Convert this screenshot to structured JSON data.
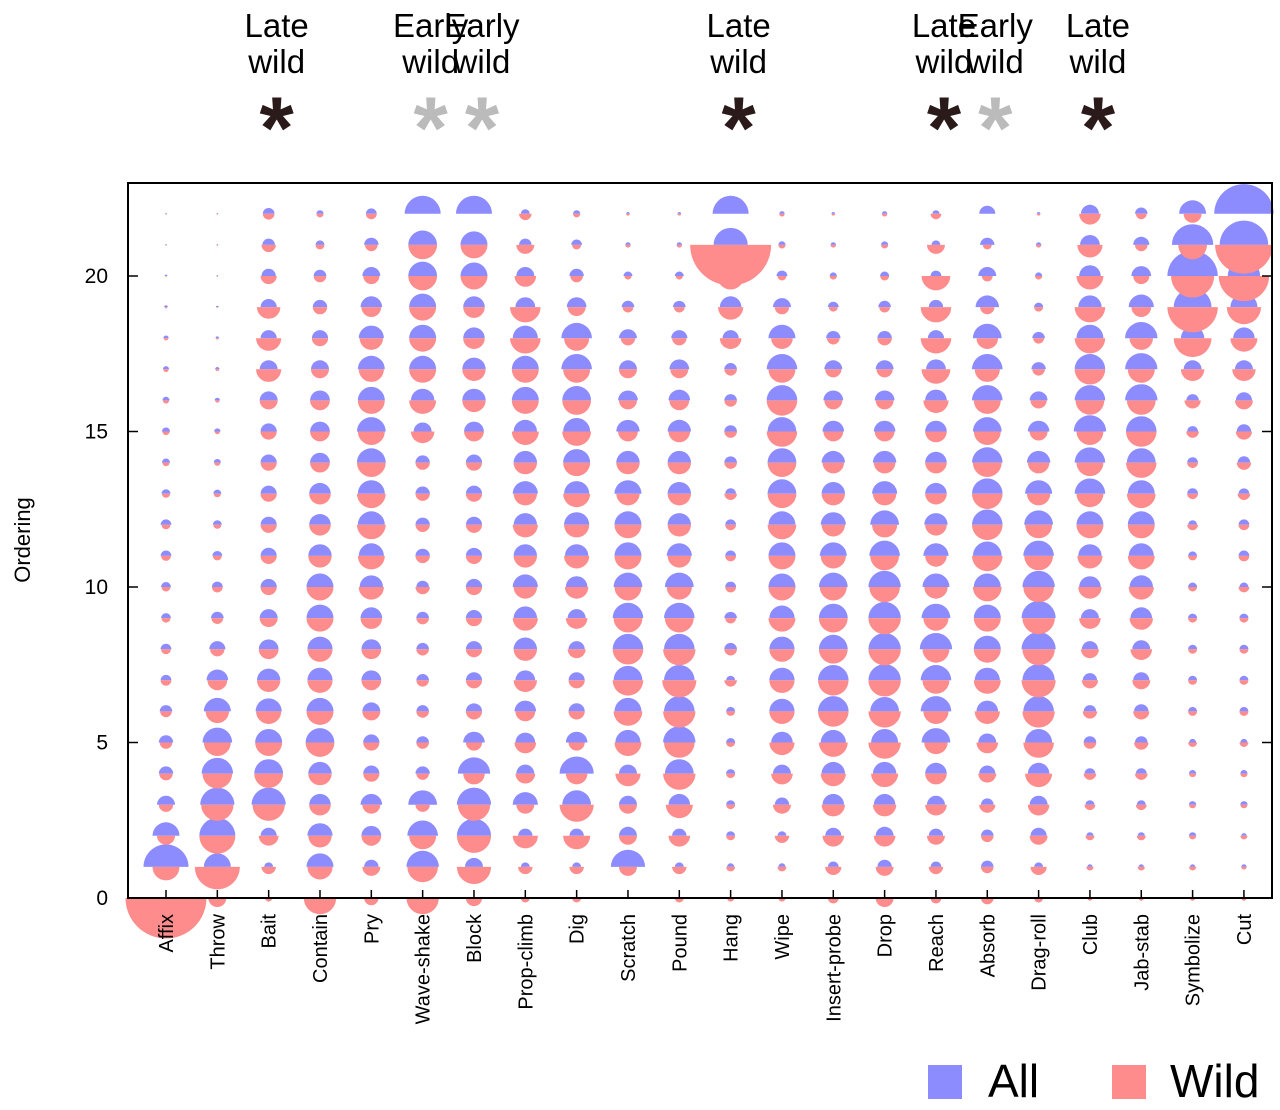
{
  "chart_data": {
    "type": "scatter",
    "ylabel": "Ordering",
    "xlabel": "",
    "ylim": [
      0,
      22
    ],
    "yticks": [
      0,
      5,
      10,
      15,
      20
    ],
    "categories": [
      "Affix",
      "Throw",
      "Bait",
      "Contain",
      "Pry",
      "Wave-shake",
      "Block",
      "Prop-climb",
      "Dig",
      "Scratch",
      "Pound",
      "Hang",
      "Wipe",
      "Insert-probe",
      "Drop",
      "Reach",
      "Absorb",
      "Drag-roll",
      "Club",
      "Jab-stab",
      "Symbolize",
      "Cut"
    ],
    "series": [
      {
        "name": "All",
        "color": "#8c8cff"
      },
      {
        "name": "Wild",
        "color": "#ff8c8c"
      }
    ],
    "legend_position": "bottom-right",
    "grid": false,
    "annotations": [
      {
        "category": "Bait",
        "line1": "Late",
        "line2": "wild",
        "symbol": "*",
        "color": "#2b1a1a"
      },
      {
        "category": "Wave-shake",
        "line1": "Early",
        "line2": "wild",
        "symbol": "*",
        "color": "#bbbbbb"
      },
      {
        "category": "Block",
        "line1": "Early",
        "line2": "wild",
        "symbol": "*",
        "color": "#bbbbbb"
      },
      {
        "category": "Hang",
        "line1": "Late",
        "line2": "wild",
        "symbol": "*",
        "color": "#2b1a1a"
      },
      {
        "category": "Reach",
        "line1": "Late",
        "line2": "wild",
        "symbol": "*",
        "color": "#2b1a1a"
      },
      {
        "category": "Absorb",
        "line1": "Early",
        "line2": "wild",
        "symbol": "*",
        "color": "#bbbbbb"
      },
      {
        "category": "Club",
        "line1": "Late",
        "line2": "wild",
        "symbol": "*",
        "color": "#2b1a1a"
      }
    ],
    "bubbles": {
      "Affix": {
        "all": [
          0,
          5.0,
          3.0,
          2.0,
          1.6,
          1.6,
          1.4,
          1.2,
          1.2,
          1.1,
          1.1,
          1.2,
          1.2,
          1.0,
          0.9,
          0.9,
          0.8,
          0.7,
          0.6,
          0.4,
          0.3,
          0.2,
          0.2
        ],
        "wild": [
          9.0,
          3.0,
          2.0,
          1.6,
          1.5,
          1.4,
          1.3,
          1.2,
          1.1,
          1.0,
          1.0,
          1.1,
          1.0,
          0.9,
          0.8,
          0.8,
          0.7,
          0.6,
          0.5,
          0.3,
          0.2,
          0.2,
          0.2
        ]
      },
      "Throw": {
        "all": [
          0,
          3.0,
          4.0,
          3.8,
          3.5,
          3.3,
          3.0,
          2.4,
          1.8,
          1.4,
          1.2,
          1.1,
          1.0,
          0.9,
          0.8,
          0.7,
          0.6,
          0.5,
          0.4,
          0.3,
          0.2,
          0.2,
          0.2
        ],
        "wild": [
          2.0,
          5.0,
          4.0,
          3.6,
          3.3,
          3.0,
          2.6,
          2.2,
          1.6,
          1.3,
          1.2,
          1.0,
          0.9,
          0.8,
          0.7,
          0.6,
          0.5,
          0.4,
          0.3,
          0.2,
          0.2,
          0.2,
          0.2
        ]
      },
      "Bait": {
        "all": [
          0,
          1.0,
          1.8,
          3.8,
          3.2,
          3.0,
          2.9,
          2.6,
          2.2,
          2.0,
          1.8,
          1.8,
          1.8,
          1.8,
          1.8,
          1.8,
          2.0,
          2.0,
          1.8,
          1.8,
          1.6,
          1.4,
          1.3
        ],
        "wild": [
          0.8,
          1.6,
          2.2,
          3.6,
          3.2,
          3.0,
          2.8,
          2.6,
          2.2,
          2.0,
          1.8,
          1.8,
          1.8,
          1.8,
          1.8,
          1.8,
          2.0,
          2.8,
          2.8,
          2.6,
          1.8,
          1.6,
          1.3
        ]
      },
      "Contain": {
        "all": [
          0,
          3.0,
          2.8,
          2.4,
          2.6,
          3.2,
          3.0,
          2.8,
          2.8,
          3.0,
          3.0,
          2.6,
          2.4,
          2.4,
          2.2,
          2.2,
          2.2,
          2.0,
          1.8,
          1.6,
          1.4,
          1.0,
          0.8
        ],
        "wild": [
          3.6,
          2.8,
          2.6,
          2.4,
          2.6,
          3.2,
          3.0,
          2.8,
          2.8,
          3.0,
          3.0,
          2.6,
          2.4,
          2.4,
          2.2,
          2.2,
          2.2,
          2.0,
          1.8,
          1.6,
          1.4,
          1.0,
          0.8
        ]
      },
      "Pry": {
        "all": [
          0,
          1.6,
          2.2,
          2.4,
          1.8,
          1.8,
          2.0,
          2.2,
          2.2,
          2.4,
          2.6,
          2.8,
          3.0,
          3.0,
          3.2,
          3.2,
          3.0,
          3.0,
          2.8,
          2.4,
          2.0,
          1.6,
          1.2
        ],
        "wild": [
          1.6,
          2.0,
          2.2,
          2.0,
          1.8,
          1.8,
          2.0,
          2.2,
          2.2,
          2.4,
          2.8,
          3.0,
          3.2,
          3.2,
          3.2,
          3.0,
          3.0,
          2.8,
          2.6,
          2.2,
          1.8,
          1.4,
          1.2
        ]
      },
      "Wave-shake": {
        "all": [
          0,
          3.6,
          3.4,
          3.2,
          1.6,
          1.4,
          1.4,
          1.4,
          1.4,
          1.4,
          1.4,
          1.6,
          1.6,
          1.6,
          1.6,
          2.0,
          2.6,
          3.0,
          3.0,
          3.0,
          3.2,
          3.2,
          4.0
        ],
        "wild": [
          3.6,
          3.4,
          3.0,
          1.6,
          1.4,
          1.4,
          1.4,
          1.4,
          1.4,
          1.4,
          1.6,
          1.6,
          1.6,
          1.6,
          1.6,
          2.6,
          3.0,
          3.0,
          3.0,
          3.0,
          3.2,
          3.2,
          0
        ]
      },
      "Block": {
        "all": [
          0,
          2.0,
          3.8,
          3.8,
          3.6,
          2.4,
          1.8,
          1.8,
          1.8,
          1.8,
          1.8,
          1.8,
          1.8,
          1.8,
          1.8,
          2.2,
          2.6,
          2.6,
          2.4,
          2.4,
          3.0,
          3.0,
          4.0
        ],
        "wild": [
          1.8,
          3.8,
          3.8,
          3.6,
          2.4,
          1.8,
          1.8,
          1.8,
          1.8,
          1.8,
          1.8,
          1.8,
          1.8,
          1.8,
          1.8,
          2.2,
          2.6,
          2.6,
          2.4,
          2.4,
          3.0,
          3.0,
          0
        ]
      },
      "Prop-climb": {
        "all": [
          0,
          1.0,
          1.6,
          2.8,
          2.0,
          2.2,
          2.4,
          2.2,
          2.6,
          2.6,
          2.8,
          2.6,
          2.6,
          2.8,
          2.6,
          2.6,
          3.0,
          3.0,
          2.8,
          2.2,
          2.0,
          1.4,
          1.0
        ],
        "wild": [
          1.0,
          1.6,
          2.8,
          2.0,
          2.2,
          2.4,
          2.2,
          2.6,
          2.6,
          2.8,
          2.6,
          2.6,
          2.8,
          2.6,
          2.6,
          3.0,
          3.0,
          3.0,
          3.4,
          3.4,
          2.4,
          2.0,
          1.4
        ]
      },
      "Dig": {
        "all": [
          0,
          1.0,
          1.6,
          3.2,
          3.8,
          2.4,
          1.8,
          1.8,
          1.8,
          2.0,
          2.4,
          2.6,
          2.8,
          2.8,
          3.0,
          3.0,
          3.2,
          3.4,
          3.4,
          2.2,
          1.6,
          1.2,
          0.8
        ],
        "wild": [
          1.0,
          1.6,
          3.0,
          3.8,
          2.4,
          1.8,
          1.8,
          1.8,
          2.0,
          2.4,
          2.6,
          2.8,
          2.8,
          3.0,
          3.0,
          3.2,
          3.2,
          3.0,
          2.8,
          2.0,
          1.4,
          1.0,
          0.8
        ]
      },
      "Scratch": {
        "all": [
          0,
          3.8,
          2.0,
          2.0,
          2.0,
          2.8,
          3.0,
          3.2,
          3.4,
          3.4,
          3.2,
          3.0,
          3.0,
          3.0,
          2.6,
          2.6,
          2.2,
          2.0,
          2.0,
          1.4,
          1.0,
          0.6,
          0.4
        ],
        "wild": [
          0,
          2.0,
          2.0,
          2.0,
          2.8,
          3.0,
          3.2,
          3.4,
          3.4,
          3.2,
          3.0,
          3.0,
          3.0,
          2.6,
          2.6,
          2.2,
          2.0,
          2.0,
          1.6,
          1.2,
          0.8,
          0.6,
          0.4
        ]
      },
      "Pound": {
        "all": [
          0,
          1.0,
          1.6,
          2.4,
          3.2,
          3.6,
          3.4,
          3.4,
          3.4,
          3.4,
          3.2,
          2.8,
          2.6,
          2.6,
          2.6,
          2.6,
          2.4,
          2.2,
          1.8,
          1.4,
          1.0,
          0.6,
          0.4
        ],
        "wild": [
          1.0,
          1.6,
          2.4,
          3.0,
          3.6,
          3.4,
          3.6,
          3.8,
          3.6,
          3.2,
          2.8,
          2.6,
          2.6,
          2.6,
          2.6,
          2.4,
          2.2,
          2.0,
          1.6,
          1.2,
          0.8,
          0.6,
          0.4
        ]
      },
      "Hang": {
        "all": [
          0,
          0.8,
          1.0,
          1.0,
          1.0,
          1.0,
          1.0,
          1.0,
          1.4,
          1.4,
          1.2,
          1.2,
          1.2,
          1.2,
          1.4,
          1.4,
          1.4,
          1.4,
          1.8,
          2.4,
          2.8,
          3.8,
          4.0
        ],
        "wild": [
          0.8,
          1.0,
          1.0,
          1.0,
          1.0,
          1.0,
          1.0,
          1.4,
          1.4,
          1.2,
          1.2,
          1.2,
          1.2,
          1.4,
          1.4,
          1.4,
          1.4,
          1.4,
          2.4,
          2.8,
          3.0,
          9.0,
          0
        ]
      },
      "Wipe": {
        "all": [
          0,
          0.8,
          1.0,
          1.6,
          2.0,
          2.4,
          2.8,
          2.8,
          2.8,
          2.8,
          3.0,
          3.0,
          3.0,
          3.2,
          3.2,
          3.2,
          3.4,
          3.4,
          3.0,
          2.0,
          1.2,
          0.8,
          0.6
        ],
        "wild": [
          0.8,
          1.0,
          1.6,
          2.0,
          2.4,
          2.8,
          2.8,
          2.8,
          2.8,
          3.0,
          3.0,
          3.0,
          3.2,
          3.2,
          3.2,
          3.4,
          3.4,
          3.0,
          2.4,
          1.6,
          1.0,
          0.8,
          0.6
        ]
      },
      "Insert-probe": {
        "all": [
          0,
          1.2,
          1.8,
          2.4,
          2.6,
          2.8,
          3.4,
          3.4,
          3.2,
          3.2,
          3.2,
          3.0,
          2.8,
          2.6,
          2.6,
          2.4,
          2.2,
          2.0,
          1.6,
          1.2,
          0.8,
          0.6,
          0.4
        ],
        "wild": [
          1.2,
          1.8,
          2.4,
          2.6,
          2.8,
          3.2,
          3.4,
          3.4,
          3.2,
          3.2,
          3.0,
          2.8,
          2.6,
          2.6,
          2.4,
          2.2,
          2.0,
          1.8,
          1.4,
          1.0,
          0.8,
          0.6,
          0.4
        ]
      },
      "Drop": {
        "all": [
          0,
          1.6,
          2.0,
          2.4,
          2.6,
          3.0,
          3.2,
          3.6,
          3.6,
          3.6,
          3.6,
          3.4,
          3.2,
          2.8,
          2.6,
          2.4,
          2.2,
          2.0,
          1.6,
          1.4,
          1.0,
          0.8,
          0.6
        ],
        "wild": [
          2.0,
          2.0,
          2.4,
          2.6,
          3.0,
          3.6,
          3.6,
          3.6,
          3.6,
          3.6,
          3.4,
          3.2,
          2.8,
          2.6,
          2.4,
          2.2,
          2.0,
          1.8,
          1.6,
          1.2,
          1.0,
          0.8,
          0.6
        ]
      },
      "Reach": {
        "all": [
          0,
          1.2,
          1.6,
          2.0,
          2.4,
          3.2,
          3.4,
          3.4,
          3.6,
          3.2,
          3.0,
          2.8,
          2.6,
          2.4,
          2.4,
          2.4,
          2.4,
          2.2,
          1.8,
          1.6,
          1.2,
          1.0,
          0.8
        ],
        "wild": [
          1.2,
          1.6,
          2.0,
          2.4,
          2.4,
          2.6,
          2.8,
          3.0,
          3.0,
          2.8,
          2.6,
          2.4,
          2.4,
          2.4,
          2.4,
          2.4,
          2.8,
          3.2,
          3.4,
          3.4,
          3.2,
          2.0,
          1.2
        ]
      },
      "Absorb": {
        "all": [
          0,
          1.4,
          1.4,
          1.4,
          1.8,
          2.0,
          2.4,
          2.8,
          3.0,
          3.0,
          3.0,
          3.2,
          3.4,
          3.4,
          3.4,
          3.2,
          3.4,
          3.4,
          3.2,
          2.6,
          2.0,
          1.6,
          1.8
        ],
        "wild": [
          1.4,
          1.4,
          1.4,
          1.8,
          2.0,
          2.4,
          2.8,
          3.0,
          3.0,
          3.0,
          3.2,
          3.4,
          3.4,
          3.4,
          3.2,
          3.0,
          3.0,
          2.8,
          2.4,
          1.6,
          1.2,
          1.0,
          0
        ]
      },
      "Drag-roll": {
        "all": [
          0,
          1.0,
          1.8,
          2.0,
          2.4,
          3.0,
          3.4,
          3.6,
          3.8,
          3.8,
          3.6,
          3.4,
          3.2,
          3.0,
          2.6,
          2.4,
          2.0,
          1.6,
          1.4,
          1.0,
          0.8,
          0.6,
          0.4
        ],
        "wild": [
          1.0,
          1.8,
          2.0,
          2.4,
          3.0,
          3.4,
          3.6,
          3.8,
          3.6,
          3.6,
          3.4,
          3.2,
          3.0,
          2.6,
          2.4,
          2.0,
          1.8,
          1.4,
          1.2,
          1.0,
          0.8,
          0.6,
          0.4
        ]
      },
      "Club": {
        "all": [
          0,
          0.6,
          0.8,
          1.0,
          1.2,
          1.4,
          1.4,
          1.6,
          1.8,
          2.0,
          2.4,
          2.6,
          3.0,
          3.4,
          3.4,
          3.6,
          3.4,
          3.4,
          3.0,
          2.6,
          2.4,
          2.2,
          2.0
        ],
        "wild": [
          0.6,
          0.8,
          1.0,
          1.2,
          1.4,
          1.4,
          1.6,
          1.8,
          2.0,
          2.4,
          2.6,
          2.8,
          3.0,
          3.0,
          3.0,
          3.0,
          3.2,
          3.4,
          3.4,
          3.4,
          3.0,
          2.8,
          2.4
        ]
      },
      "Jab-stab": {
        "all": [
          0,
          0.6,
          0.8,
          1.0,
          1.2,
          1.4,
          1.6,
          1.8,
          2.0,
          2.4,
          2.6,
          2.8,
          3.0,
          3.0,
          3.2,
          3.4,
          3.6,
          3.6,
          3.6,
          2.8,
          2.2,
          1.8,
          1.4
        ],
        "wild": [
          0.6,
          0.8,
          1.0,
          1.2,
          1.4,
          1.6,
          1.8,
          2.0,
          2.4,
          2.6,
          2.8,
          3.0,
          3.0,
          3.2,
          3.4,
          3.4,
          3.2,
          3.0,
          2.6,
          2.2,
          1.8,
          1.4,
          1.2
        ]
      },
      "Symbolize": {
        "all": [
          0,
          0.6,
          0.8,
          0.8,
          0.8,
          0.8,
          1.0,
          1.0,
          1.0,
          1.0,
          1.0,
          1.0,
          1.0,
          1.2,
          1.2,
          1.2,
          1.4,
          2.0,
          2.6,
          4.2,
          5.6,
          4.6,
          3.0
        ],
        "wild": [
          0.6,
          0.8,
          0.8,
          0.8,
          0.8,
          1.0,
          1.0,
          1.0,
          1.0,
          1.0,
          1.0,
          1.0,
          1.2,
          1.2,
          1.2,
          1.4,
          1.8,
          2.6,
          4.2,
          5.6,
          4.8,
          3.2,
          2.0
        ]
      },
      "Cut": {
        "all": [
          0,
          0.6,
          0.6,
          0.8,
          0.8,
          0.8,
          1.0,
          1.0,
          1.0,
          1.0,
          1.0,
          1.2,
          1.2,
          1.2,
          1.4,
          1.6,
          1.8,
          2.0,
          2.4,
          3.0,
          3.6,
          5.4,
          6.6
        ],
        "wild": [
          0.6,
          0.6,
          0.8,
          0.8,
          0.8,
          1.0,
          1.0,
          1.0,
          1.0,
          1.0,
          1.2,
          1.2,
          1.2,
          1.4,
          1.6,
          1.8,
          2.0,
          2.6,
          3.0,
          3.8,
          5.6,
          6.4,
          0
        ]
      }
    }
  }
}
